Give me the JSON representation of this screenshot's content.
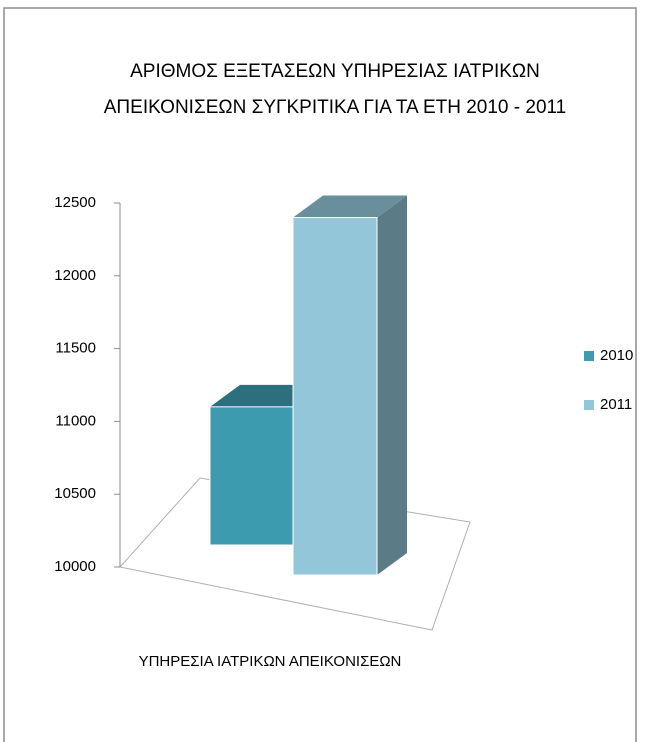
{
  "chart_data": {
    "type": "bar3d",
    "title": "ΑΡΙΘΜΟΣ ΕΞΕΤΑΣΕΩΝ  ΥΠΗΡΕΣΙΑΣ ΙΑΤΡΙΚΩΝ",
    "subtitle": "ΑΠΕΙΚΟΝΙΣΕΩΝ ΣΥΓΚΡΙΤΙΚΑ ΓΙΑ ΤΑ ΕΤΗ 2010 - 2011",
    "categories": [
      "ΥΠΗΡΕΣΙΑ ΙΑΤΡΙΚΩΝ ΑΠΕΙΚΟΝΙΣΕΩΝ"
    ],
    "series": [
      {
        "name": "2010",
        "color": "#3d9bb0",
        "values": [
          11100
        ]
      },
      {
        "name": "2011",
        "color": "#93c6d9",
        "values": [
          12400
        ]
      }
    ],
    "ylim": [
      10000,
      12500
    ],
    "yticks": [
      10000,
      10500,
      11000,
      11500,
      12000,
      12500
    ],
    "legend": "right"
  }
}
